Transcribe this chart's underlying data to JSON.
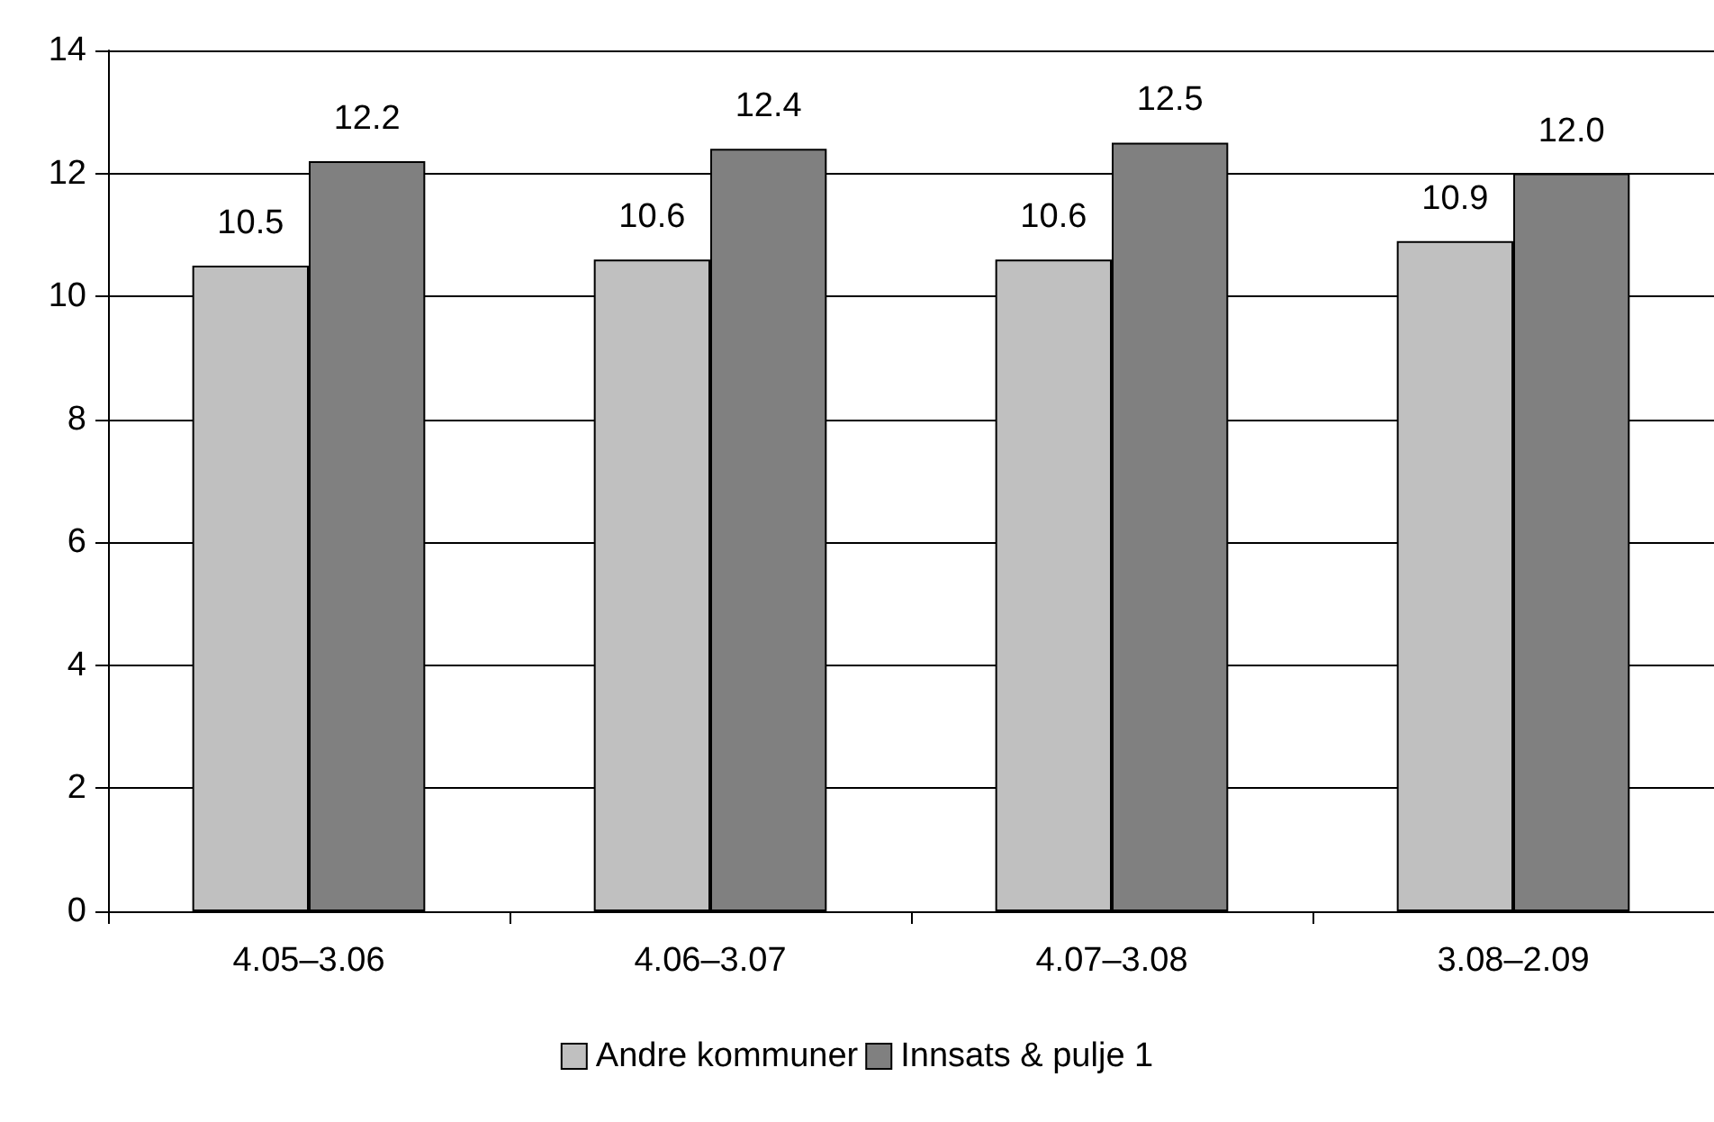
{
  "chart_data": {
    "type": "bar",
    "categories": [
      "4.05–3.06",
      "4.06–3.07",
      "4.07–3.08",
      "3.08–2.09"
    ],
    "series": [
      {
        "name": "Andre kommuner",
        "color": "#c0c0c0",
        "values": [
          10.5,
          10.6,
          10.6,
          10.9
        ],
        "value_labels": [
          "10.5",
          "10.6",
          "10.6",
          "10.9"
        ]
      },
      {
        "name": "Innsats & pulje 1",
        "color": "#808080",
        "values": [
          12.2,
          12.4,
          12.5,
          12.0
        ],
        "value_labels": [
          "12.2",
          "12.4",
          "12.5",
          "12.0"
        ]
      }
    ],
    "ylim": [
      0,
      14
    ],
    "yticks": [
      0,
      2,
      4,
      6,
      8,
      10,
      12,
      14
    ],
    "grid": "y",
    "legend": "bottom"
  }
}
